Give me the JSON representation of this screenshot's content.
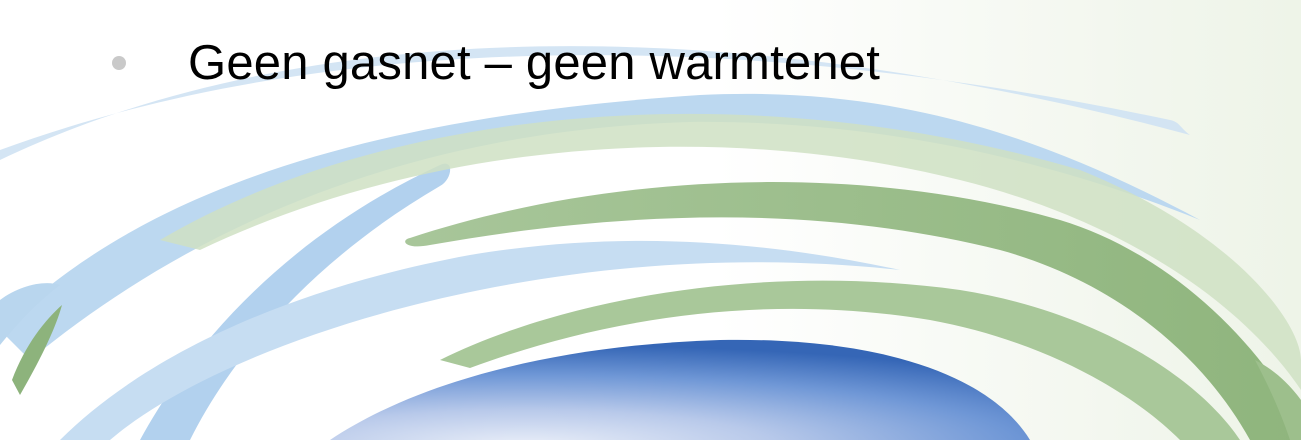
{
  "slide": {
    "bullets": [
      {
        "text": "Geen gasnet – geen warmtenet"
      }
    ]
  },
  "colors": {
    "text": "#000000",
    "bullet": "#c9c9c9",
    "swoosh_blue": "#b9d6ee",
    "swoosh_green": "#9dbf8c",
    "globe_blue": "#3f77c4"
  }
}
